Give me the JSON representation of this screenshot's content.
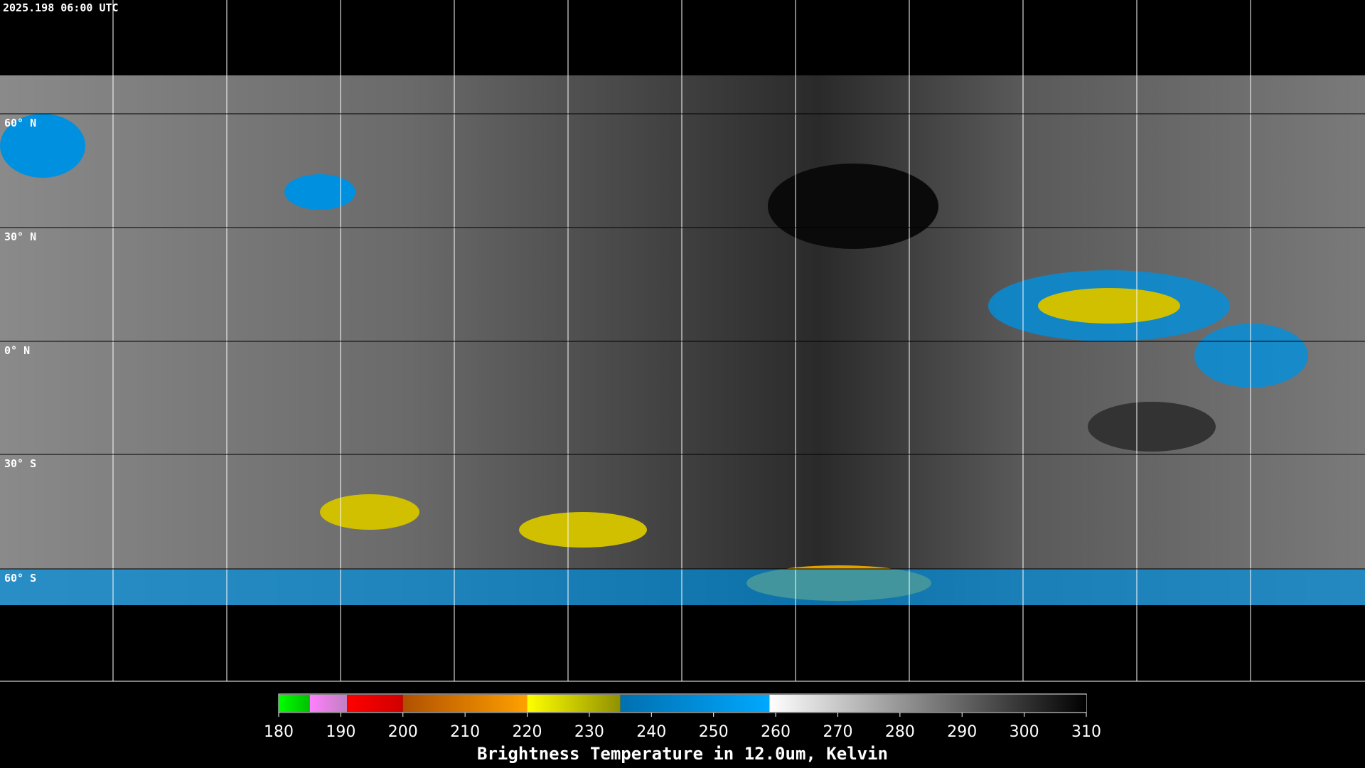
{
  "header": {
    "timestamp": "2025.198 06:00 UTC"
  },
  "map": {
    "lat_labels": [
      "60° N",
      "30° N",
      "0° N",
      "30° S",
      "60° S"
    ]
  },
  "colorbar": {
    "title": "Brightness Temperature in 12.0um, Kelvin",
    "range": [
      180,
      310
    ],
    "ticks": [
      180,
      190,
      200,
      210,
      220,
      230,
      240,
      250,
      260,
      270,
      280,
      290,
      300,
      310
    ],
    "segments": [
      {
        "from": 180,
        "to": 185,
        "colors": [
          "#00ff00",
          "#00c000"
        ]
      },
      {
        "from": 185,
        "to": 191,
        "colors": [
          "#ff80ff",
          "#c080c0"
        ]
      },
      {
        "from": 191,
        "to": 200,
        "colors": [
          "#ff0000",
          "#d00000"
        ]
      },
      {
        "from": 200,
        "to": 220,
        "colors": [
          "#b05000",
          "#ffa000"
        ]
      },
      {
        "from": 220,
        "to": 235,
        "colors": [
          "#ffff00",
          "#909000"
        ]
      },
      {
        "from": 235,
        "to": 259,
        "colors": [
          "#0070b0",
          "#00a8ff"
        ]
      },
      {
        "from": 259,
        "to": 310,
        "colors": [
          "#ffffff",
          "#000000"
        ]
      }
    ]
  }
}
